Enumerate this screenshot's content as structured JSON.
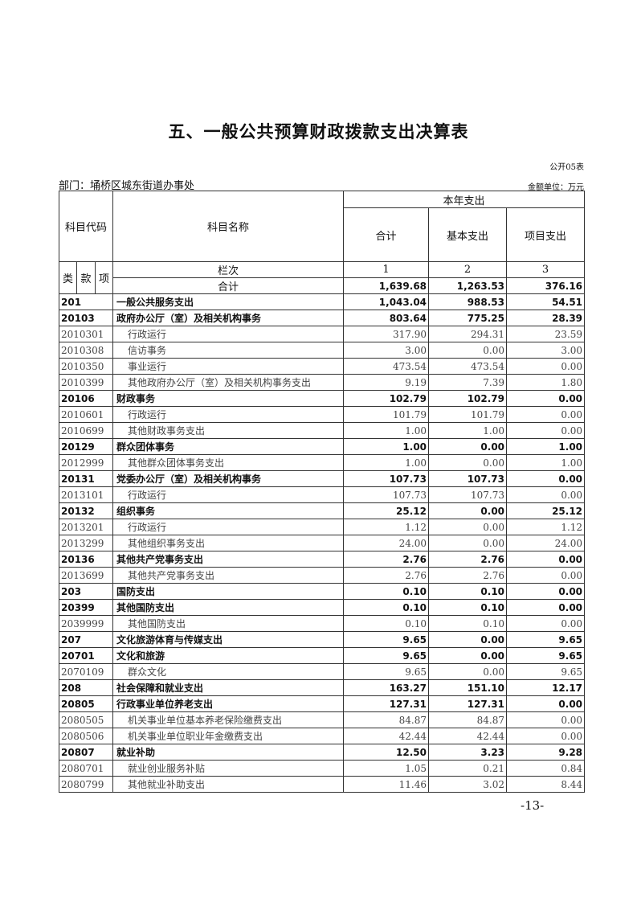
{
  "title": "五、一般公共预算财政拨款支出决算表",
  "form_no": "公开05表",
  "department": "部门：埇桥区城东街道办事处",
  "unit": "金额单位：万元",
  "header": {
    "code": "科目代码",
    "name": "科目名称",
    "group": "本年支出",
    "total": "合计",
    "basic": "基本支出",
    "project": "项目支出",
    "lei": "类",
    "kuan": "款",
    "xiang": "项",
    "col_label": "栏次",
    "col1": "1",
    "col2": "2",
    "col3": "3",
    "sum_label": "合计",
    "sum_total": "1,639.68",
    "sum_basic": "1,263.53",
    "sum_project": "376.16"
  },
  "rows": [
    {
      "code": "201",
      "name": "一般公共服务支出",
      "total": "1,043.04",
      "basic": "988.53",
      "project": "54.51",
      "bold": true
    },
    {
      "code": "20103",
      "name": "政府办公厅（室）及相关机构事务",
      "total": "803.64",
      "basic": "775.25",
      "project": "28.39",
      "bold": true
    },
    {
      "code": "2010301",
      "name": "行政运行",
      "total": "317.90",
      "basic": "294.31",
      "project": "23.59"
    },
    {
      "code": "2010308",
      "name": "信访事务",
      "total": "3.00",
      "basic": "0.00",
      "project": "3.00"
    },
    {
      "code": "2010350",
      "name": "事业运行",
      "total": "473.54",
      "basic": "473.54",
      "project": "0.00"
    },
    {
      "code": "2010399",
      "name": "其他政府办公厅（室）及相关机构事务支出",
      "total": "9.19",
      "basic": "7.39",
      "project": "1.80"
    },
    {
      "code": "20106",
      "name": "财政事务",
      "total": "102.79",
      "basic": "102.79",
      "project": "0.00",
      "bold": true
    },
    {
      "code": "2010601",
      "name": "行政运行",
      "total": "101.79",
      "basic": "101.79",
      "project": "0.00"
    },
    {
      "code": "2010699",
      "name": "其他财政事务支出",
      "total": "1.00",
      "basic": "1.00",
      "project": "0.00"
    },
    {
      "code": "20129",
      "name": "群众团体事务",
      "total": "1.00",
      "basic": "0.00",
      "project": "1.00",
      "bold": true
    },
    {
      "code": "2012999",
      "name": "其他群众团体事务支出",
      "total": "1.00",
      "basic": "0.00",
      "project": "1.00"
    },
    {
      "code": "20131",
      "name": "党委办公厅（室）及相关机构事务",
      "total": "107.73",
      "basic": "107.73",
      "project": "0.00",
      "bold": true
    },
    {
      "code": "2013101",
      "name": "行政运行",
      "total": "107.73",
      "basic": "107.73",
      "project": "0.00"
    },
    {
      "code": "20132",
      "name": "组织事务",
      "total": "25.12",
      "basic": "0.00",
      "project": "25.12",
      "bold": true
    },
    {
      "code": "2013201",
      "name": "行政运行",
      "total": "1.12",
      "basic": "0.00",
      "project": "1.12"
    },
    {
      "code": "2013299",
      "name": "其他组织事务支出",
      "total": "24.00",
      "basic": "0.00",
      "project": "24.00"
    },
    {
      "code": "20136",
      "name": "其他共产党事务支出",
      "total": "2.76",
      "basic": "2.76",
      "project": "0.00",
      "bold": true
    },
    {
      "code": "2013699",
      "name": "其他共产党事务支出",
      "total": "2.76",
      "basic": "2.76",
      "project": "0.00"
    },
    {
      "code": "203",
      "name": "国防支出",
      "total": "0.10",
      "basic": "0.10",
      "project": "0.00",
      "bold": true
    },
    {
      "code": "20399",
      "name": "其他国防支出",
      "total": "0.10",
      "basic": "0.10",
      "project": "0.00",
      "bold": true
    },
    {
      "code": "2039999",
      "name": "其他国防支出",
      "total": "0.10",
      "basic": "0.10",
      "project": "0.00"
    },
    {
      "code": "207",
      "name": "文化旅游体育与传媒支出",
      "total": "9.65",
      "basic": "0.00",
      "project": "9.65",
      "bold": true
    },
    {
      "code": "20701",
      "name": "文化和旅游",
      "total": "9.65",
      "basic": "0.00",
      "project": "9.65",
      "bold": true
    },
    {
      "code": "2070109",
      "name": "群众文化",
      "total": "9.65",
      "basic": "0.00",
      "project": "9.65"
    },
    {
      "code": "208",
      "name": "社会保障和就业支出",
      "total": "163.27",
      "basic": "151.10",
      "project": "12.17",
      "bold": true
    },
    {
      "code": "20805",
      "name": "行政事业单位养老支出",
      "total": "127.31",
      "basic": "127.31",
      "project": "0.00",
      "bold": true
    },
    {
      "code": "2080505",
      "name": "机关事业单位基本养老保险缴费支出",
      "total": "84.87",
      "basic": "84.87",
      "project": "0.00"
    },
    {
      "code": "2080506",
      "name": "机关事业单位职业年金缴费支出",
      "total": "42.44",
      "basic": "42.44",
      "project": "0.00"
    },
    {
      "code": "20807",
      "name": "就业补助",
      "total": "12.50",
      "basic": "3.23",
      "project": "9.28",
      "bold": true
    },
    {
      "code": "2080701",
      "name": "就业创业服务补贴",
      "total": "1.05",
      "basic": "0.21",
      "project": "0.84"
    },
    {
      "code": "2080799",
      "name": "其他就业补助支出",
      "total": "11.46",
      "basic": "3.02",
      "project": "8.44"
    }
  ],
  "page_number": "-13-"
}
